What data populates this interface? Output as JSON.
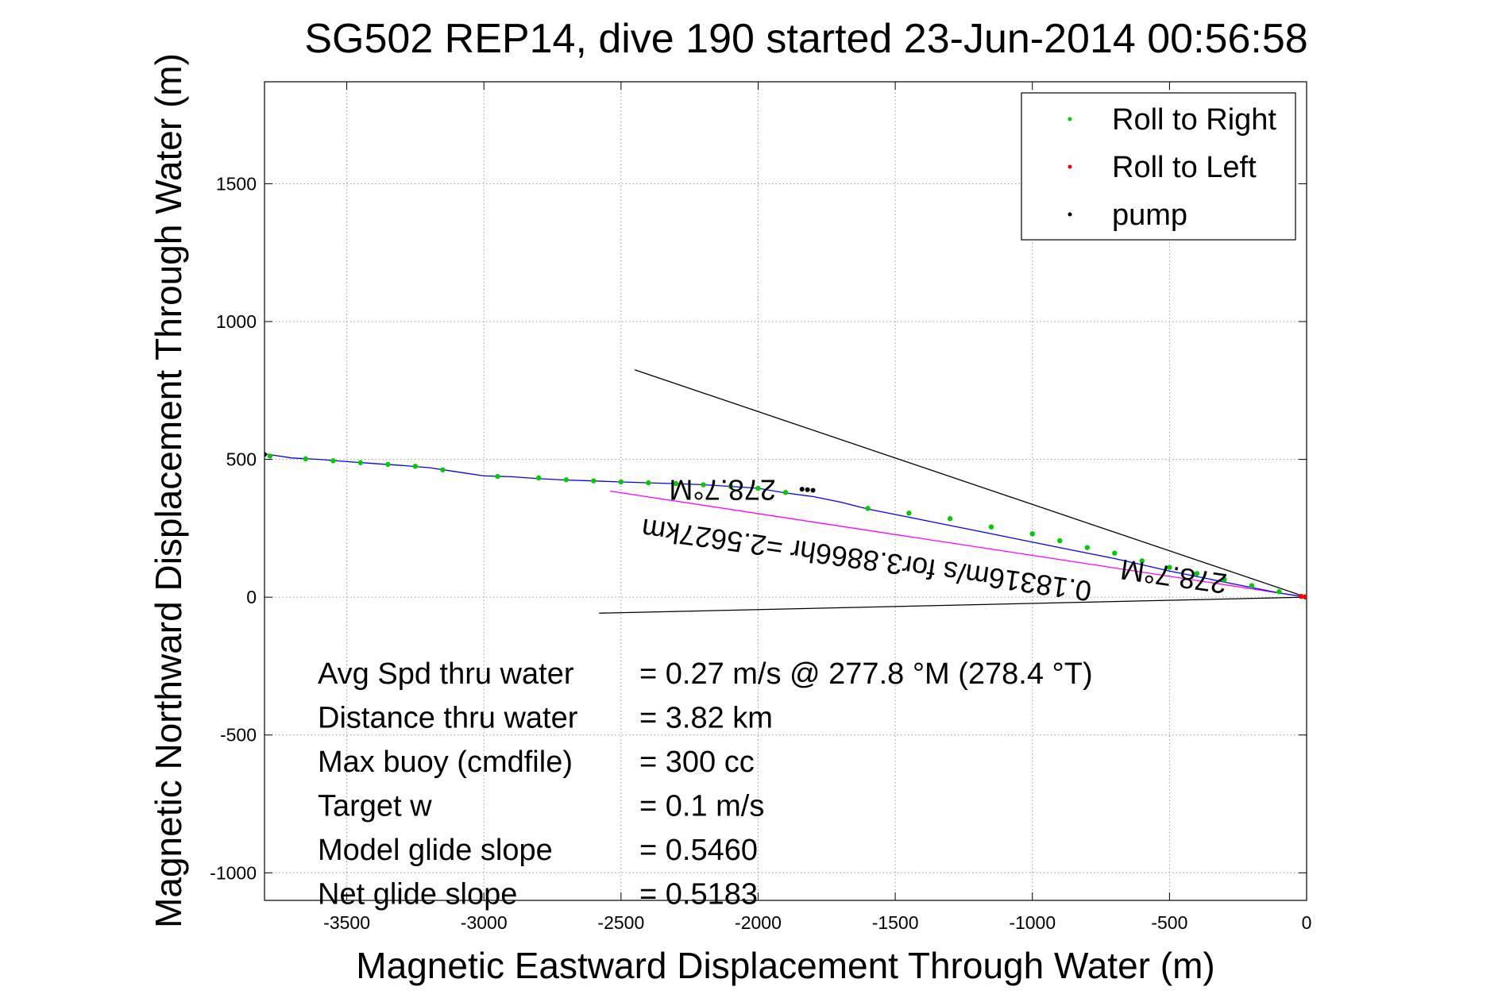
{
  "chart_data": {
    "type": "scatter",
    "title": "SG502 REP14, dive 190 started 23-Jun-2014 00:56:58",
    "xlabel": "Magnetic Eastward Displacement Through Water (m)",
    "ylabel": "Magnetic Northward Displacement Through Water (m)",
    "xlim": [
      -3800,
      0
    ],
    "ylim": [
      -1100,
      1870
    ],
    "xticks": [
      "-3500",
      "-3000",
      "-2500",
      "-2000",
      "-1500",
      "-1000",
      "-500",
      "0"
    ],
    "xtick_values": [
      -3500,
      -3000,
      -2500,
      -2000,
      -1500,
      -1000,
      -500,
      0
    ],
    "yticks": [
      "-1000",
      "-500",
      "0",
      "500",
      "1000",
      "1500"
    ],
    "ytick_values": [
      -1000,
      -500,
      0,
      500,
      1000,
      1500
    ],
    "grid": true,
    "legend_position": "top-right",
    "legend": [
      {
        "label": "Roll to Right",
        "color": "#00cc00"
      },
      {
        "label": "Roll to Left",
        "color": "#ff0000"
      },
      {
        "label": "pump",
        "color": "#000000"
      }
    ],
    "track": {
      "name": "",
      "color": "#0000ff",
      "x": [
        -3800,
        -3700,
        -3600,
        -3500,
        -3400,
        -3300,
        -3200,
        -3100,
        -3000,
        -2900,
        -2800,
        -2700,
        -2600,
        -2500,
        -2400,
        -2300,
        -2200,
        -2100,
        -2000,
        -1900,
        -1800,
        -1700,
        -1600,
        -1500,
        -1400,
        -1300,
        -1200,
        -1100,
        -1000,
        -900,
        -800,
        -700,
        -600,
        -500,
        -400,
        -300,
        -200,
        -100,
        0
      ],
      "y": [
        520,
        505,
        500,
        492,
        485,
        478,
        470,
        455,
        440,
        437,
        430,
        425,
        422,
        418,
        415,
        412,
        408,
        402,
        395,
        378,
        365,
        345,
        320,
        300,
        280,
        260,
        240,
        220,
        200,
        180,
        160,
        140,
        118,
        95,
        75,
        55,
        35,
        15,
        0
      ]
    },
    "roll_right": {
      "x": [
        -3780,
        -3650,
        -3550,
        -3450,
        -3350,
        -3250,
        -3150,
        -2950,
        -2800,
        -2700,
        -2600,
        -2500,
        -2400,
        -2300,
        -2200,
        -2100,
        -2000,
        -1900,
        -1600,
        -1450,
        -1300,
        -1150,
        -1000,
        -900,
        -800,
        -700,
        -600,
        -500,
        -400,
        -300,
        -200,
        -100
      ],
      "y": [
        512,
        502,
        495,
        488,
        482,
        475,
        462,
        438,
        433,
        426,
        422,
        418,
        415,
        412,
        408,
        402,
        395,
        380,
        322,
        305,
        285,
        255,
        230,
        205,
        180,
        160,
        132,
        108,
        86,
        64,
        42,
        20
      ]
    },
    "roll_left": {
      "x": [
        -20,
        -5,
        0
      ],
      "y": [
        3,
        1,
        0
      ]
    },
    "pump": {
      "x": [
        -3800,
        -1840,
        -1820,
        -1800
      ],
      "y": [
        518,
        392,
        390,
        388
      ]
    },
    "lines": [
      {
        "name": "line1",
        "color": "#000000",
        "x": [
          0,
          -2450
        ],
        "y": [
          0,
          825
        ]
      },
      {
        "name": "line2",
        "color": "#000000",
        "x": [
          0,
          -2580
        ],
        "y": [
          0,
          -58
        ]
      },
      {
        "name": "line3",
        "color": "#ff00ff",
        "x": [
          0,
          -2540
        ],
        "y": [
          0,
          385
        ]
      }
    ],
    "annotations": [
      {
        "text": "278.7°M",
        "x": -2130,
        "y": 425,
        "angle": 180
      },
      {
        "text": "278.7°M",
        "x": -480,
        "y": 110,
        "angle": 188
      },
      {
        "text": "0.18316m/s for3.8866hr =2.5627km",
        "x": -1600,
        "y": 170,
        "angle": 188
      }
    ],
    "stats": [
      {
        "label": "Avg Spd thru water",
        "value": "=  0.27 m/s @ 277.8 °M (278.4 °T)"
      },
      {
        "label": "Distance thru water",
        "value": "=  3.82 km"
      },
      {
        "label": "Max buoy (cmdfile)",
        "value": "= 300 cc"
      },
      {
        "label": "Target w",
        "value": "= 0.1 m/s"
      },
      {
        "label": "Model glide slope",
        "value": "= 0.5460"
      },
      {
        "label": "Net glide slope",
        "value": "= 0.5183"
      }
    ]
  }
}
